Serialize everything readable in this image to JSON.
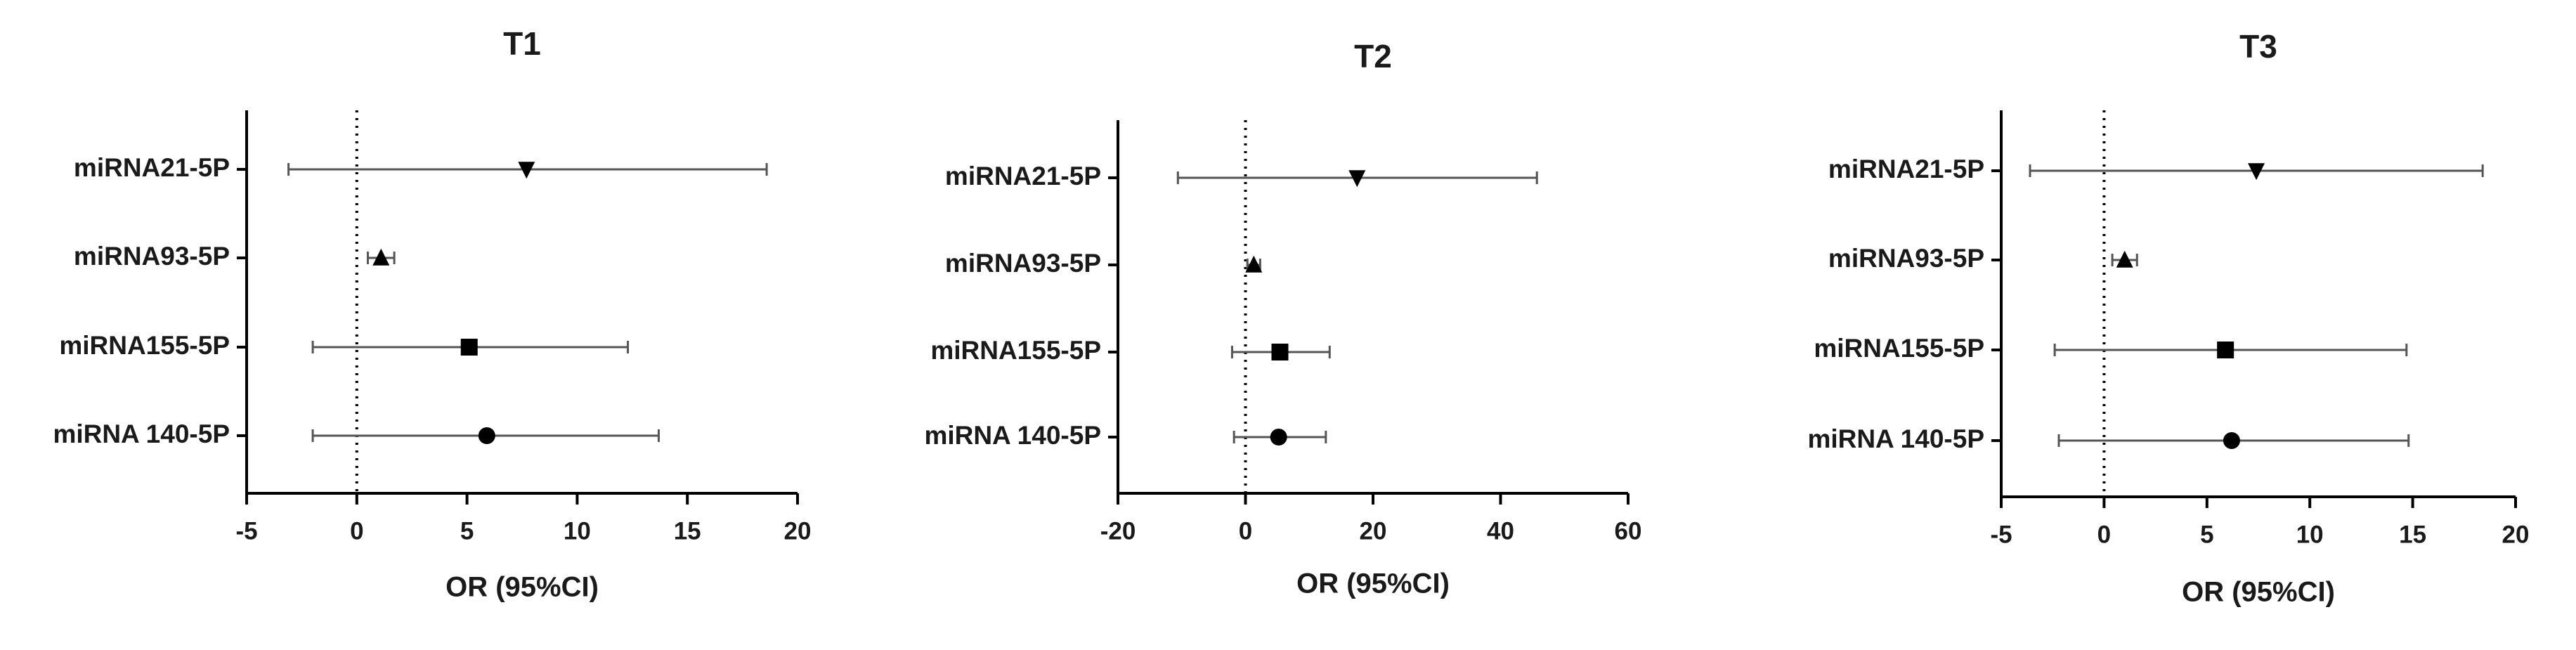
{
  "chart_data": [
    {
      "type": "forest",
      "title": "T1",
      "x_label": "OR (95%CI)",
      "categories": [
        "miRNA21-5P",
        "miRNA93-5P",
        "miRNA155-5P",
        "miRNA 140-5P"
      ],
      "values": [
        7.7,
        1.1,
        5.1,
        5.9
      ],
      "lower": [
        -3.1,
        0.5,
        -2.0,
        -2.0
      ],
      "upper": [
        18.6,
        1.7,
        12.3,
        13.7
      ],
      "markers": [
        "triangle-down",
        "triangle-up",
        "square",
        "circle"
      ],
      "color": "#000000",
      "xlim": [
        -5,
        20
      ],
      "xticks": [
        -5,
        0,
        5,
        10,
        15,
        20
      ],
      "reference_x": 0
    },
    {
      "type": "forest",
      "title": "T2",
      "x_label": "OR (95%CI)",
      "categories": [
        "miRNA21-5P",
        "miRNA93-5P",
        "miRNA155-5P",
        "miRNA 140-5P"
      ],
      "values": [
        17.5,
        1.3,
        5.4,
        5.2
      ],
      "lower": [
        -10.6,
        0.3,
        -2.1,
        -1.8
      ],
      "upper": [
        45.7,
        2.3,
        13.2,
        12.6
      ],
      "markers": [
        "triangle-down",
        "triangle-up",
        "square",
        "circle"
      ],
      "color": "#000000",
      "xlim": [
        -20,
        60
      ],
      "xticks": [
        -20,
        0,
        20,
        40,
        60
      ],
      "reference_x": 0
    },
    {
      "type": "forest",
      "title": "T3",
      "x_label": "OR (95%CI)",
      "categories": [
        "miRNA21-5P",
        "miRNA93-5P",
        "miRNA155-5P",
        "miRNA 140-5P"
      ],
      "values": [
        7.4,
        1.0,
        5.9,
        6.2
      ],
      "lower": [
        -3.6,
        0.4,
        -2.4,
        -2.2
      ],
      "upper": [
        18.4,
        1.6,
        14.7,
        14.8
      ],
      "markers": [
        "triangle-down",
        "triangle-up",
        "square",
        "circle"
      ],
      "color": "#000000",
      "xlim": [
        -5,
        20
      ],
      "xticks": [
        -5,
        0,
        5,
        10,
        15,
        20
      ],
      "reference_x": 0
    }
  ]
}
